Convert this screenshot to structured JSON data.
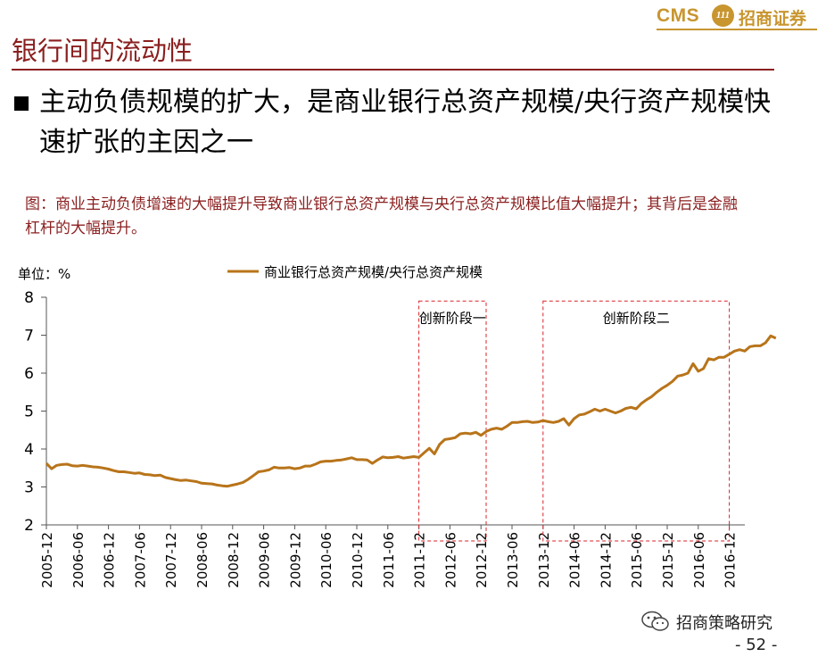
{
  "header": {
    "logo_latin": "CMS",
    "logo_badge": "111",
    "logo_chinese": "招商证券",
    "title": "银行间的流动性"
  },
  "bullet": {
    "text": "主动负债规模的扩大，是商业银行总资产规模/央行资产规模快速扩张的主因之一"
  },
  "caption": {
    "text": "图：商业主动负债增速的大幅提升导致商业银行总资产规模与央行总资产规模比值大幅提升；其背后是金融杠杆的大幅提升。"
  },
  "chart_data": {
    "type": "line",
    "unit_label": "单位：%",
    "ylim": [
      2,
      8
    ],
    "yticks": [
      2,
      3,
      4,
      5,
      6,
      7,
      8
    ],
    "x_start": "2005-12",
    "x_end": "2017-03",
    "xticks": [
      "2005-12",
      "2006-06",
      "2006-12",
      "2007-06",
      "2007-12",
      "2008-06",
      "2008-12",
      "2009-06",
      "2009-12",
      "2010-06",
      "2010-12",
      "2011-06",
      "2011-12",
      "2012-06",
      "2012-12",
      "2013-06",
      "2013-12",
      "2014-06",
      "2014-12",
      "2015-06",
      "2015-12",
      "2016-06",
      "2016-12"
    ],
    "grid": false,
    "legend_position": "top",
    "series": [
      {
        "name": "商业银行总资产规模/央行总资产规模",
        "color": "#b8741a",
        "values": [
          3.62,
          3.48,
          3.57,
          3.59,
          3.6,
          3.56,
          3.55,
          3.57,
          3.55,
          3.53,
          3.52,
          3.5,
          3.47,
          3.43,
          3.4,
          3.4,
          3.38,
          3.36,
          3.37,
          3.33,
          3.32,
          3.3,
          3.31,
          3.25,
          3.22,
          3.19,
          3.17,
          3.18,
          3.16,
          3.14,
          3.1,
          3.09,
          3.08,
          3.05,
          3.03,
          3.02,
          3.05,
          3.08,
          3.12,
          3.2,
          3.3,
          3.4,
          3.42,
          3.45,
          3.52,
          3.5,
          3.5,
          3.51,
          3.48,
          3.5,
          3.55,
          3.55,
          3.6,
          3.66,
          3.68,
          3.68,
          3.7,
          3.71,
          3.74,
          3.77,
          3.72,
          3.72,
          3.71,
          3.62,
          3.71,
          3.79,
          3.77,
          3.78,
          3.8,
          3.76,
          3.78,
          3.8,
          3.78,
          3.9,
          4.02,
          3.87,
          4.12,
          4.25,
          4.27,
          4.3,
          4.4,
          4.42,
          4.4,
          4.44,
          4.36,
          4.46,
          4.52,
          4.55,
          4.52,
          4.6,
          4.7,
          4.7,
          4.72,
          4.73,
          4.7,
          4.71,
          4.75,
          4.72,
          4.7,
          4.73,
          4.8,
          4.63,
          4.8,
          4.9,
          4.92,
          4.98,
          5.05,
          5.0,
          5.05,
          5.0,
          4.95,
          5.0,
          5.07,
          5.1,
          5.06,
          5.2,
          5.3,
          5.38,
          5.5,
          5.6,
          5.68,
          5.78,
          5.92,
          5.95,
          6.0,
          6.25,
          6.05,
          6.12,
          6.38,
          6.35,
          6.42,
          6.42,
          6.5,
          6.58,
          6.62,
          6.58,
          6.7,
          6.72,
          6.72,
          6.8,
          6.98,
          6.92
        ]
      }
    ],
    "annotations": [
      {
        "label": "创新阶段一",
        "from": "2011-12",
        "to": "2013-01",
        "ymin": 2,
        "ymax": 7.9
      },
      {
        "label": "创新阶段二",
        "from": "2013-12",
        "to": "2016-12",
        "ymin": 2,
        "ymax": 7.9
      }
    ]
  },
  "footer": {
    "watermark": "招商策略研究",
    "page": "- 52 -"
  }
}
